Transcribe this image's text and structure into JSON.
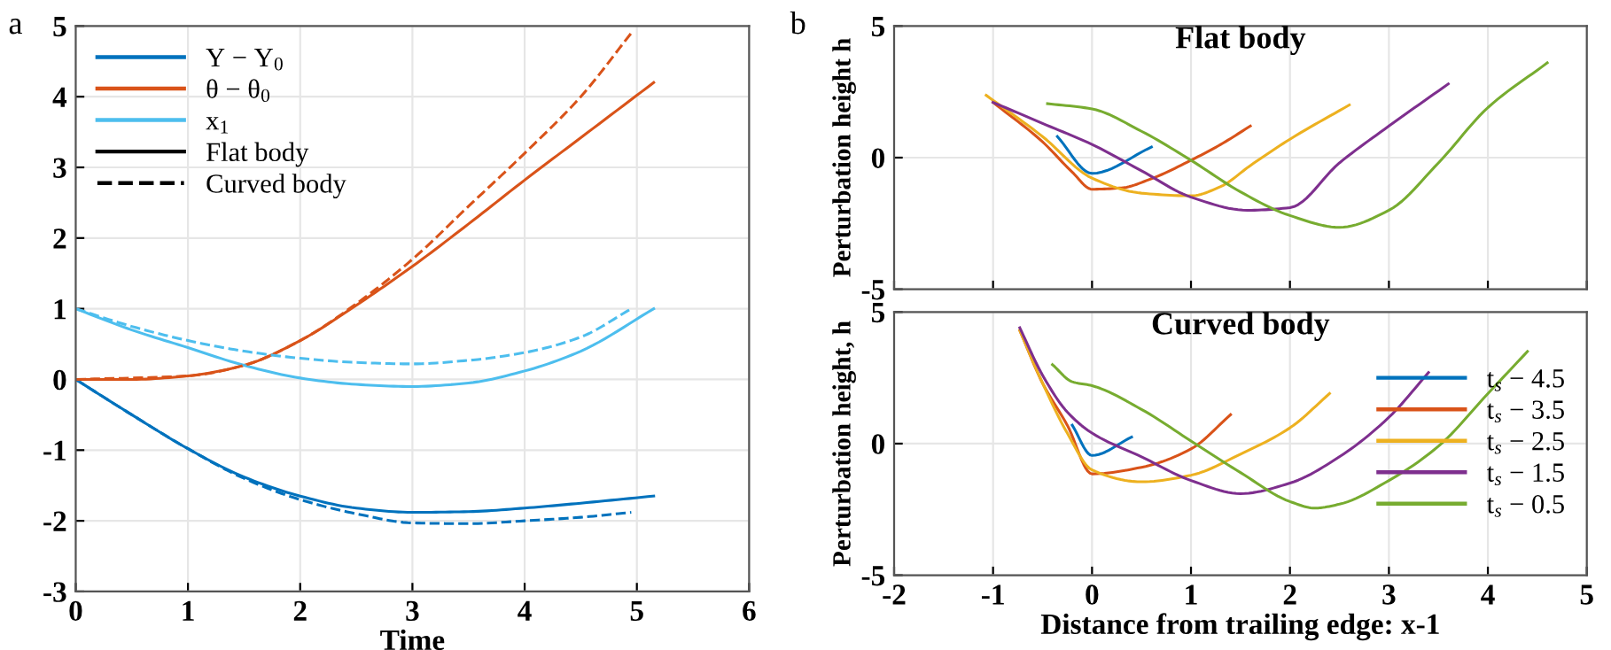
{
  "chart_data": [
    {
      "type": "line",
      "xlabel": "Time",
      "annotations": [
        "a"
      ],
      "xlim": [
        0,
        6
      ],
      "xticks": [
        0,
        1,
        2,
        3,
        4,
        5,
        6
      ],
      "ylim": [
        -3,
        5
      ],
      "yticks": [
        -3,
        -2,
        -1,
        0,
        1,
        2,
        3,
        4,
        5
      ],
      "grid": true,
      "legend": "top left",
      "series": [
        {
          "name": "Y − Y$_{0}$",
          "color": "#0072bd",
          "line_style": "solid",
          "x": [
            0,
            0.5,
            1,
            1.5,
            2,
            2.5,
            3,
            3.5,
            4,
            4.5,
            5.15
          ],
          "values": [
            0,
            -0.5,
            -0.98,
            -1.38,
            -1.65,
            -1.82,
            -1.88,
            -1.87,
            -1.82,
            -1.75,
            -1.65
          ]
        },
        {
          "name": "θ − θ$_{0}$",
          "color": "#d95319",
          "line_style": "solid",
          "x": [
            0,
            0.5,
            1,
            1.5,
            2,
            2.5,
            3,
            3.5,
            4,
            4.5,
            5.15
          ],
          "values": [
            0,
            0.0,
            0.05,
            0.2,
            0.55,
            1.05,
            1.6,
            2.2,
            2.82,
            3.42,
            4.2
          ]
        },
        {
          "name": "x$_{1}$",
          "color": "#4dbeee",
          "line_style": "solid",
          "x": [
            0,
            0.5,
            1,
            1.5,
            2,
            2.5,
            3,
            3.5,
            4,
            4.5,
            5.15
          ],
          "values": [
            1,
            0.7,
            0.45,
            0.2,
            0.02,
            -0.07,
            -0.1,
            -0.05,
            0.12,
            0.4,
            1.0
          ]
        },
        {
          "color": "#0072bd",
          "line_style": "dashed",
          "x": [
            0,
            0.5,
            1,
            1.5,
            2,
            2.5,
            3,
            3.5,
            4,
            4.5,
            4.95
          ],
          "values": [
            0,
            -0.5,
            -0.98,
            -1.4,
            -1.7,
            -1.9,
            -2.03,
            -2.04,
            -2.0,
            -1.95,
            -1.88
          ]
        },
        {
          "color": "#d95319",
          "line_style": "dashed",
          "x": [
            0,
            1,
            1.5,
            2,
            2.5,
            3,
            3.5,
            4,
            4.5,
            4.95
          ],
          "values": [
            0,
            0.05,
            0.2,
            0.55,
            1.07,
            1.7,
            2.45,
            3.2,
            4.0,
            4.9
          ]
        },
        {
          "color": "#4dbeee",
          "line_style": "dashed",
          "x": [
            0,
            0.5,
            1,
            1.5,
            2,
            2.5,
            3,
            3.5,
            4,
            4.5,
            4.95
          ],
          "values": [
            1,
            0.75,
            0.55,
            0.4,
            0.3,
            0.24,
            0.22,
            0.27,
            0.38,
            0.6,
            1.0
          ]
        },
        {
          "name": "Flat body",
          "color": "#000000",
          "line_style": "solid"
        },
        {
          "name": "Curved body",
          "color": "#000000",
          "line_style": "dashed"
        }
      ]
    },
    {
      "type": "line",
      "title": "Flat body",
      "ylabel": "Perturbation height h",
      "annotations": [
        "b"
      ],
      "xlim": [
        -2,
        5
      ],
      "xticks": [
        -2,
        -1,
        0,
        1,
        2,
        3,
        4,
        5
      ],
      "ylim": [
        -5,
        5
      ],
      "yticks": [
        -5,
        0,
        5
      ],
      "grid": true,
      "tick_labels": "y",
      "series": [
        {
          "color": "#0072bd",
          "x": [
            -0.35,
            0,
            0.6
          ],
          "values": [
            0.8,
            -0.6,
            0.4
          ]
        },
        {
          "color": "#d95319",
          "x": [
            -1,
            -0.5,
            -0.2,
            0,
            0.3,
            0.6,
            1,
            1.3,
            1.6
          ],
          "values": [
            2.1,
            0.6,
            -0.55,
            -1.2,
            -1.15,
            -0.8,
            -0.1,
            0.5,
            1.2
          ]
        },
        {
          "color": "#edb120",
          "x": [
            -1.07,
            -0.5,
            0,
            0.5,
            1,
            1.3,
            1.6,
            2,
            2.6
          ],
          "values": [
            2.37,
            0.8,
            -0.78,
            -1.35,
            -1.45,
            -1.1,
            -0.3,
            0.7,
            2.0
          ]
        },
        {
          "color": "#7e2f8e",
          "x": [
            -1,
            -0.5,
            0,
            0.5,
            1,
            1.57,
            2,
            2.5,
            3,
            3.6
          ],
          "values": [
            2.1,
            1.3,
            0.5,
            -0.5,
            -1.5,
            -2.0,
            -1.9,
            -0.2,
            1.2,
            2.8
          ]
        },
        {
          "color": "#77ac30",
          "x": [
            -0.45,
            0,
            0.5,
            1,
            1.5,
            2,
            2.5,
            3,
            3.5,
            4,
            4.6
          ],
          "values": [
            2.05,
            1.85,
            1.0,
            -0.1,
            -1.3,
            -2.2,
            -2.65,
            -2.0,
            -0.2,
            1.9,
            3.6
          ]
        }
      ]
    },
    {
      "type": "line",
      "title": "Curved body",
      "ylabel": "Perturbation height, h",
      "xlabel": "Distance from trailing edge: x-1",
      "xlim": [
        -2,
        5
      ],
      "xticks": [
        -2,
        -1,
        0,
        1,
        2,
        3,
        4,
        5
      ],
      "ylim": [
        -5,
        5
      ],
      "yticks": [
        -5,
        0,
        5
      ],
      "grid": true,
      "legend": "center right",
      "series": [
        {
          "name": "t$_{s}$ − 4.5",
          "color": "#0072bd",
          "x": [
            -0.2,
            0,
            0.4
          ],
          "values": [
            0.7,
            -0.45,
            0.25
          ]
        },
        {
          "name": "t$_{s}$ − 3.5",
          "color": "#d95319",
          "x": [
            -0.73,
            -0.5,
            -0.25,
            0,
            0.5,
            1,
            1.4
          ],
          "values": [
            4.3,
            2.3,
            0.7,
            -1.15,
            -0.9,
            -0.2,
            1.1
          ]
        },
        {
          "name": "t$_{s}$ − 2.5",
          "color": "#edb120",
          "x": [
            -0.73,
            -0.5,
            -0.25,
            0,
            0.5,
            1,
            1.5,
            2,
            2.4
          ],
          "values": [
            4.3,
            2.3,
            0.4,
            -1.0,
            -1.45,
            -1.2,
            -0.4,
            0.6,
            1.9
          ]
        },
        {
          "name": "t$_{s}$ − 1.5",
          "color": "#7e2f8e",
          "x": [
            -0.73,
            -0.5,
            -0.25,
            0,
            0.5,
            1,
            1.5,
            2,
            2.5,
            3,
            3.4
          ],
          "values": [
            4.4,
            2.6,
            1.2,
            0.4,
            -0.5,
            -1.4,
            -1.9,
            -1.5,
            -0.5,
            1.0,
            2.7
          ]
        },
        {
          "name": "t$_{s}$ − 0.5",
          "color": "#77ac30",
          "x": [
            -0.4,
            -0.2,
            0,
            0.5,
            1,
            1.5,
            2,
            2.25,
            2.5,
            3,
            3.5,
            4,
            4.4
          ],
          "values": [
            3.0,
            2.35,
            2.2,
            1.3,
            0.1,
            -1.1,
            -2.2,
            -2.45,
            -2.3,
            -1.4,
            -0.1,
            1.9,
            3.5
          ]
        }
      ]
    }
  ]
}
